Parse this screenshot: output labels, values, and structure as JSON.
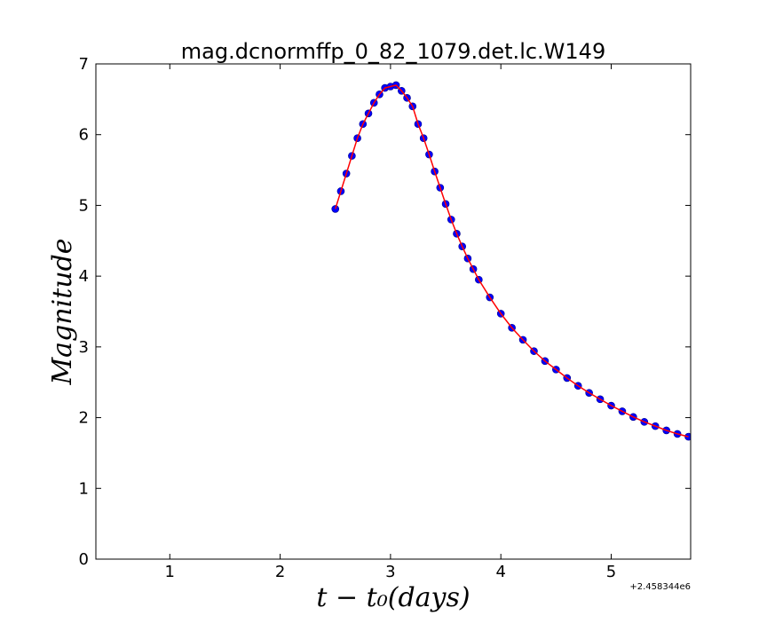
{
  "chart_data": {
    "type": "scatter",
    "title": "mag.dcnormffp_0_82_1079.det.lc.W149",
    "xlabel": "t − t₀(days)",
    "ylabel": "Magnitude",
    "x_offset_label": "+2.458344e6",
    "xlim": [
      0.33,
      5.72
    ],
    "ylim": [
      0,
      7
    ],
    "xticks": [
      1,
      2,
      3,
      4,
      5
    ],
    "yticks": [
      0,
      1,
      2,
      3,
      4,
      5,
      6,
      7
    ],
    "grid": false,
    "series": [
      {
        "kind": "points",
        "color": "#0000ff",
        "x": [
          2.5,
          2.55,
          2.6,
          2.65,
          2.7,
          2.75,
          2.8,
          2.85,
          2.9,
          2.95,
          3.0,
          3.05,
          3.1,
          3.15,
          3.2,
          3.25,
          3.3,
          3.35,
          3.4,
          3.45,
          3.5,
          3.55,
          3.6,
          3.65,
          3.7,
          3.75,
          3.8,
          3.9,
          4.0,
          4.1,
          4.2,
          4.3,
          4.4,
          4.5,
          4.6,
          4.7,
          4.8,
          4.9,
          5.0,
          5.1,
          5.2,
          5.3,
          5.4,
          5.5,
          5.6,
          5.7
        ],
        "y": [
          4.95,
          5.2,
          5.45,
          5.7,
          5.95,
          6.15,
          6.3,
          6.45,
          6.57,
          6.66,
          6.68,
          6.7,
          6.62,
          6.52,
          6.4,
          6.15,
          5.95,
          5.72,
          5.48,
          5.25,
          5.02,
          4.8,
          4.6,
          4.42,
          4.25,
          4.1,
          3.95,
          3.7,
          3.47,
          3.27,
          3.1,
          2.94,
          2.8,
          2.68,
          2.56,
          2.45,
          2.35,
          2.26,
          2.17,
          2.09,
          2.01,
          1.94,
          1.88,
          1.82,
          1.77,
          1.73
        ]
      },
      {
        "kind": "model",
        "color": "#ff0000",
        "x": [
          2.5,
          2.55,
          2.6,
          2.65,
          2.7,
          2.75,
          2.8,
          2.85,
          2.9,
          2.95,
          3.0,
          3.05,
          3.1,
          3.15,
          3.2,
          3.25,
          3.3,
          3.35,
          3.4,
          3.45,
          3.5,
          3.55,
          3.6,
          3.65,
          3.7,
          3.75,
          3.8,
          3.9,
          4.0,
          4.1,
          4.2,
          4.3,
          4.4,
          4.5,
          4.6,
          4.7,
          4.8,
          4.9,
          5.0,
          5.1,
          5.2,
          5.3,
          5.4,
          5.5,
          5.6,
          5.7
        ],
        "y": [
          4.95,
          5.2,
          5.45,
          5.7,
          5.95,
          6.15,
          6.3,
          6.45,
          6.57,
          6.66,
          6.68,
          6.7,
          6.62,
          6.52,
          6.4,
          6.15,
          5.95,
          5.72,
          5.48,
          5.25,
          5.02,
          4.8,
          4.6,
          4.42,
          4.25,
          4.1,
          3.95,
          3.7,
          3.47,
          3.27,
          3.1,
          2.94,
          2.8,
          2.68,
          2.56,
          2.45,
          2.35,
          2.26,
          2.17,
          2.09,
          2.01,
          1.94,
          1.88,
          1.82,
          1.77,
          1.73
        ]
      }
    ]
  }
}
